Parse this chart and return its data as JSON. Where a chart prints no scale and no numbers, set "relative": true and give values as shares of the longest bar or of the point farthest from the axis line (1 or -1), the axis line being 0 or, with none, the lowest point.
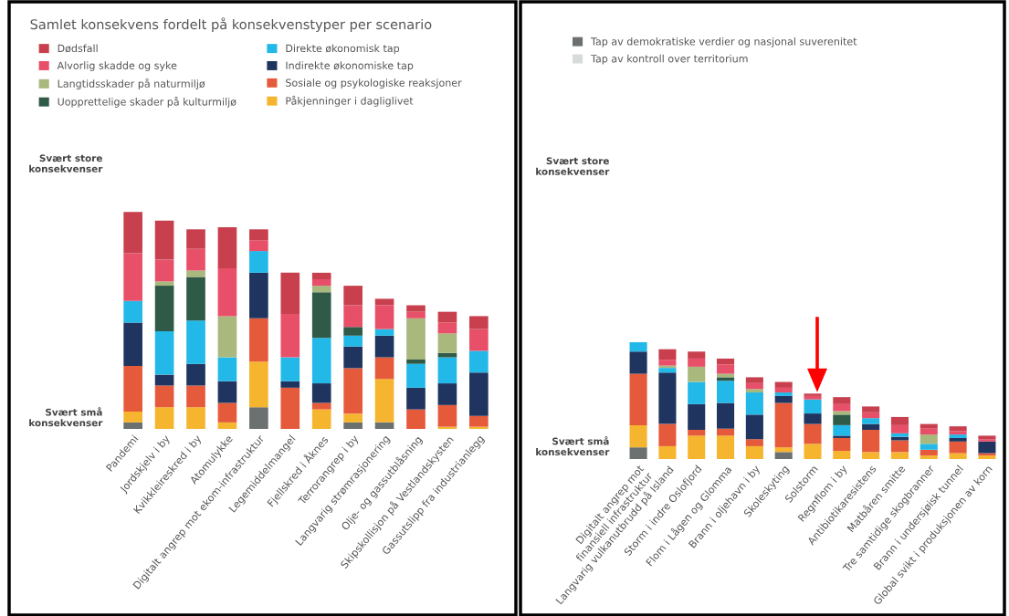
{
  "chart_data": [
    {
      "type": "bar",
      "stacked": true,
      "relative": true,
      "title": "Samlet konsekvens fordelt på konsekvenstyper per scenario",
      "legend": "top",
      "grid": false,
      "annotations": [
        "Svært store\nkonsekvenser",
        "Svært små\nkonsekvenser"
      ],
      "categories": [
        "Pandemi",
        "Jordskjelv i by",
        "Kvikkleireskred i by",
        "Atomulykke",
        "Digitalt angrep mot ekom-infrastruktur",
        "Legemiddelmangel",
        "Fjellskred i Åknes",
        "Terrorangrep i by",
        "Langvarig strømrasjonering",
        "Olje- og gassutblåsning",
        "Skipskollisjon på Vestlandskysten",
        "Gassutslipp fra industrianlegg"
      ],
      "series": [
        {
          "color": "#6b7070",
          "values": [
            0.03,
            null,
            null,
            null,
            0.1,
            null,
            null,
            0.03,
            0.03,
            null,
            null,
            null
          ]
        },
        {
          "name": "Påkjenninger i dagliglivet",
          "color": "#f5b52e",
          "values": [
            0.05,
            0.1,
            0.1,
            0.03,
            0.21,
            null,
            0.09,
            0.04,
            0.2,
            null,
            0.01,
            0.01
          ]
        },
        {
          "name": "Sosiale og psykologiske reaksjoner",
          "color": "#e65a3c",
          "values": [
            0.21,
            0.1,
            0.1,
            0.09,
            0.2,
            0.19,
            0.03,
            0.21,
            0.1,
            0.09,
            0.1,
            0.05
          ]
        },
        {
          "name": "Indirekte økonomiske tap",
          "color": "#1f3560",
          "values": [
            0.2,
            0.05,
            0.1,
            0.1,
            0.21,
            0.03,
            0.09,
            0.1,
            0.1,
            0.1,
            0.1,
            0.2
          ]
        },
        {
          "name": "Direkte økonomisk tap",
          "color": "#22b8e8",
          "values": [
            0.1,
            0.2,
            0.2,
            0.11,
            0.1,
            0.11,
            0.21,
            0.05,
            0.03,
            0.11,
            0.12,
            0.1
          ]
        },
        {
          "name": "Uopprettelige skader på kulturmiljø",
          "color": "#2f5a48",
          "values": [
            null,
            0.21,
            0.2,
            null,
            null,
            null,
            0.21,
            0.04,
            null,
            0.02,
            0.02,
            null
          ]
        },
        {
          "name": "Langtidsskader på naturmiljø",
          "color": "#a9b87c",
          "values": [
            null,
            0.02,
            0.03,
            0.19,
            null,
            null,
            0.03,
            null,
            null,
            0.19,
            0.09,
            null
          ]
        },
        {
          "name": "Alvorlig skadde og syke",
          "color": "#e8506a",
          "values": [
            0.22,
            0.1,
            0.1,
            0.22,
            0.05,
            0.2,
            0.03,
            0.1,
            0.11,
            0.03,
            0.05,
            0.1
          ]
        },
        {
          "name": "Dødsfall",
          "color": "#c8404e",
          "values": [
            0.19,
            0.18,
            0.09,
            0.19,
            0.05,
            0.19,
            0.03,
            0.09,
            0.03,
            0.03,
            0.05,
            0.06
          ]
        }
      ]
    },
    {
      "type": "bar",
      "stacked": true,
      "relative": true,
      "legend": "top",
      "grid": false,
      "annotations": [
        "Svært store\nkonsekvenser",
        "Svært små\nkonsekvenser"
      ],
      "categories": [
        "Digitalt angrep mot\nfinansiell infrastruktur",
        "Langvarig vulkanutbrudd på Island",
        "Storm i indre Oslofjord",
        "Flom i Lågen og Glomma",
        "Brann i oljehavn i by",
        "Skoleskyting",
        "Solstorm",
        "Regnflom i by",
        "Antibiotikaresistens",
        "Matbåren smitte",
        "Tre samtidige skogbranner",
        "Brann i undersjøisk tunnel",
        "Global svikt i produksjonen av korn"
      ],
      "series": [
        {
          "name": "Tap av demokratiske verdier og nasjonal suverenitet",
          "color": "#6b7070",
          "values": [
            0.1,
            null,
            null,
            null,
            null,
            0.06,
            null,
            null,
            null,
            null,
            null,
            null,
            null
          ]
        },
        {
          "name": "Tap av kontroll over territorium",
          "color": "#d8dcd8",
          "values": [
            null,
            null,
            null,
            null,
            null,
            null,
            null,
            null,
            null,
            null,
            null,
            null,
            null
          ]
        },
        {
          "color": "#f5b52e",
          "values": [
            0.19,
            0.11,
            0.2,
            0.2,
            0.11,
            0.04,
            0.13,
            0.07,
            0.06,
            0.06,
            0.03,
            0.05,
            0.03
          ]
        },
        {
          "color": "#e65a3c",
          "values": [
            0.44,
            0.19,
            0.05,
            0.06,
            0.06,
            0.38,
            0.17,
            0.11,
            0.19,
            0.1,
            0.05,
            0.1,
            0.02
          ]
        },
        {
          "color": "#1f3560",
          "values": [
            0.19,
            0.44,
            0.22,
            0.22,
            0.21,
            0.06,
            0.09,
            0.02,
            0.05,
            0.03,
            null,
            0.03,
            0.1
          ]
        },
        {
          "color": "#22b8e8",
          "values": [
            0.08,
            0.04,
            0.19,
            0.19,
            0.19,
            0.03,
            0.12,
            0.09,
            0.05,
            0.03,
            0.05,
            0.03,
            null
          ]
        },
        {
          "color": "#2f5a48",
          "values": [
            null,
            null,
            null,
            0.03,
            null,
            null,
            null,
            0.09,
            null,
            null,
            null,
            null,
            null
          ]
        },
        {
          "color": "#a9b87c",
          "values": [
            null,
            0.02,
            0.13,
            0.03,
            0.03,
            null,
            null,
            0.03,
            null,
            null,
            0.08,
            null,
            null
          ]
        },
        {
          "color": "#e8506a",
          "values": [
            null,
            0.05,
            0.07,
            0.08,
            0.05,
            0.04,
            0.03,
            0.06,
            0.05,
            0.07,
            0.05,
            0.03,
            0.02
          ]
        },
        {
          "color": "#c8404e",
          "values": [
            null,
            0.09,
            0.06,
            0.05,
            0.05,
            0.05,
            0.02,
            0.06,
            0.05,
            0.07,
            0.04,
            0.04,
            0.03
          ]
        }
      ]
    }
  ]
}
